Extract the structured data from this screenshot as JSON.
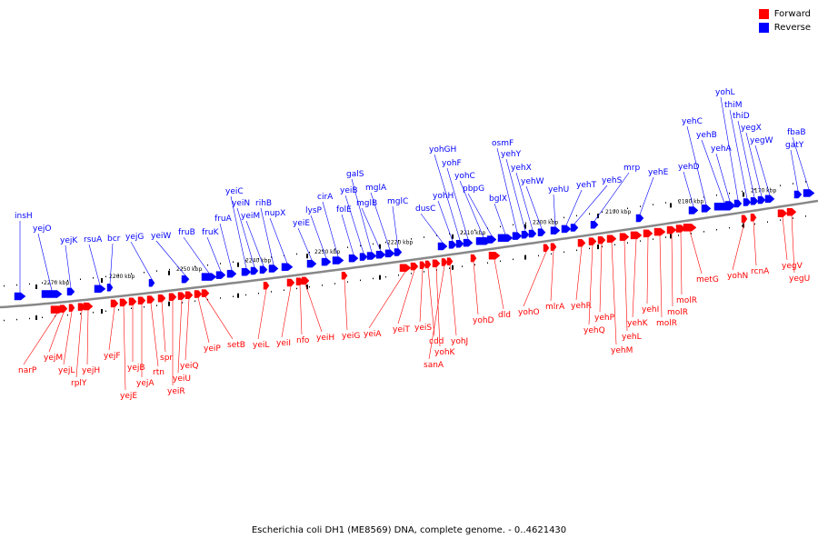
{
  "colors": {
    "forward": "#ff0000",
    "reverse": "#0000ff",
    "backbone": "#888888",
    "tick": "#000000"
  },
  "legend": [
    {
      "label": "Forward",
      "color": "#ff0000"
    },
    {
      "label": "Reverse",
      "color": "#0000ff"
    }
  ],
  "caption": "Escherichia coli DH1 (ME8569) DNA, complete genome. - 0..4621430",
  "scale_labels": [
    "2170 kbp",
    "2180 kbp",
    "2190 kbp",
    "2200 kbp",
    "2210 kbp",
    "2220 kbp",
    "2230 kbp",
    "2240 kbp",
    "2250 kbp",
    "2260 kbp",
    "2270 kbp"
  ],
  "genes_reverse": [
    "insH",
    "yejO",
    "yejK",
    "rsuA",
    "bcr",
    "yejG",
    "yeiW",
    "fruB",
    "fruK",
    "fruA",
    "yeiC",
    "yeiN",
    "yeiM",
    "rihB",
    "nupX",
    "yeiE",
    "lysP",
    "cirA",
    "folE",
    "yeiB",
    "galS",
    "mglB",
    "mglA",
    "mglC",
    "dusC",
    "yohH",
    "yohGH",
    "yohF",
    "yohC",
    "pbpG",
    "bglX",
    "osmF",
    "yehY",
    "yehX",
    "yehW",
    "yehU",
    "yehT",
    "yehS",
    "mrp",
    "yehE",
    "yehD",
    "yehC",
    "yehB",
    "yehA",
    "yohL",
    "thiM",
    "thiD",
    "yegX",
    "yegW",
    "gatY",
    "fbaB"
  ],
  "genes_forward": [
    "narP",
    "yejM",
    "yejL",
    "rplY",
    "yejH",
    "yejF",
    "yejE",
    "yejB",
    "yejA",
    "rtn",
    "spr",
    "yeiR",
    "yeiU",
    "yeiQ",
    "yeiP",
    "setB",
    "yeiL",
    "yeiI",
    "nfo",
    "yeiH",
    "yeiG",
    "yeiA",
    "yeiT",
    "yeiS",
    "cdd",
    "yohK",
    "sanA",
    "yohJ",
    "yohD",
    "dld",
    "yohO",
    "mlrA",
    "yehR",
    "yehQ",
    "yehP",
    "yehM",
    "yehL",
    "yehK",
    "yehI",
    "molR",
    "molR",
    "molR",
    "metG",
    "yohN",
    "rcnA",
    "yegV",
    "yegU"
  ]
}
